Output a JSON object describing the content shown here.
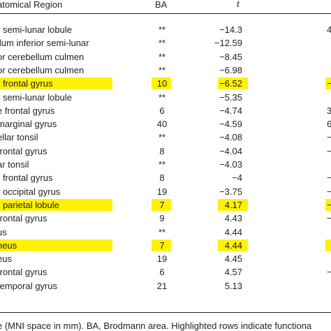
{
  "header": {
    "region": "atomical Region",
    "ba": "BA",
    "t": "t"
  },
  "rows": [
    {
      "region": "r semi-lunar lobule",
      "ba": "**",
      "t": "−14.3",
      "extra": "4",
      "hl": false
    },
    {
      "region": "llum inferior semi-lunar",
      "ba": "**",
      "t": "−12.59",
      "extra": "",
      "hl": false
    },
    {
      "region": "or cerebellum culmen",
      "ba": "**",
      "t": "−8.45",
      "extra": "",
      "hl": false
    },
    {
      "region": "or cerebellum culmen",
      "ba": "**",
      "t": "−6.98",
      "extra": "",
      "hl": false
    },
    {
      "region": "r frontal gyrus",
      "ba": "10",
      "t": "−6.52",
      "extra": "−",
      "hl": true
    },
    {
      "region": "r semi-lunar lobule",
      "ba": "**",
      "t": "−5.35",
      "extra": "",
      "hl": false
    },
    {
      "region": "e frontal gyrus",
      "ba": "6",
      "t": "−4.74",
      "extra": "3",
      "hl": false
    },
    {
      "region": "marginal gyrus",
      "ba": "40",
      "t": "−4.59",
      "extra": "6",
      "hl": false
    },
    {
      "region": "ellar tonsil",
      "ba": "**",
      "t": "−4.08",
      "extra": "−",
      "hl": false
    },
    {
      "region": "frontal gyrus",
      "ba": "8",
      "t": "−4.04",
      "extra": "−",
      "hl": false
    },
    {
      "region": "ar tonsil",
      "ba": "**",
      "t": "−4.03",
      "extra": "",
      "hl": false
    },
    {
      "region": "r frontal gyrus",
      "ba": "8",
      "t": "−4",
      "extra": "−",
      "hl": false
    },
    {
      "region": "r occipital gyrus",
      "ba": "19",
      "t": "−3.75",
      "extra": "−",
      "hl": false
    },
    {
      "region": "r parietal lobule",
      "ba": "7",
      "t": "4.17",
      "extra": "−",
      "hl": true
    },
    {
      "region": "frontal gyrus",
      "ba": "9",
      "t": "4.43",
      "extra": "−",
      "hl": false
    },
    {
      "region": "us",
      "ba": "**",
      "t": "4.44",
      "extra": "",
      "hl": false
    },
    {
      "region": "neus",
      "ba": "7",
      "t": "4.44",
      "extra": "",
      "hl": true
    },
    {
      "region": "eus",
      "ba": "19",
      "t": "4.45",
      "extra": "",
      "hl": false
    },
    {
      "region": "frontal gyrus",
      "ba": "6",
      "t": "4.57",
      "extra": "−",
      "hl": false
    },
    {
      "region": "temporal gyrus",
      "ba": "21",
      "t": "5.13",
      "extra": "",
      "hl": false
    }
  ],
  "footnote": "e (MNI space in mm). BA, Brodmann area. Highlighted rows indicate functiona",
  "colors": {
    "highlight": "#fff200",
    "text": "#231f20",
    "background": "#ffffff"
  }
}
